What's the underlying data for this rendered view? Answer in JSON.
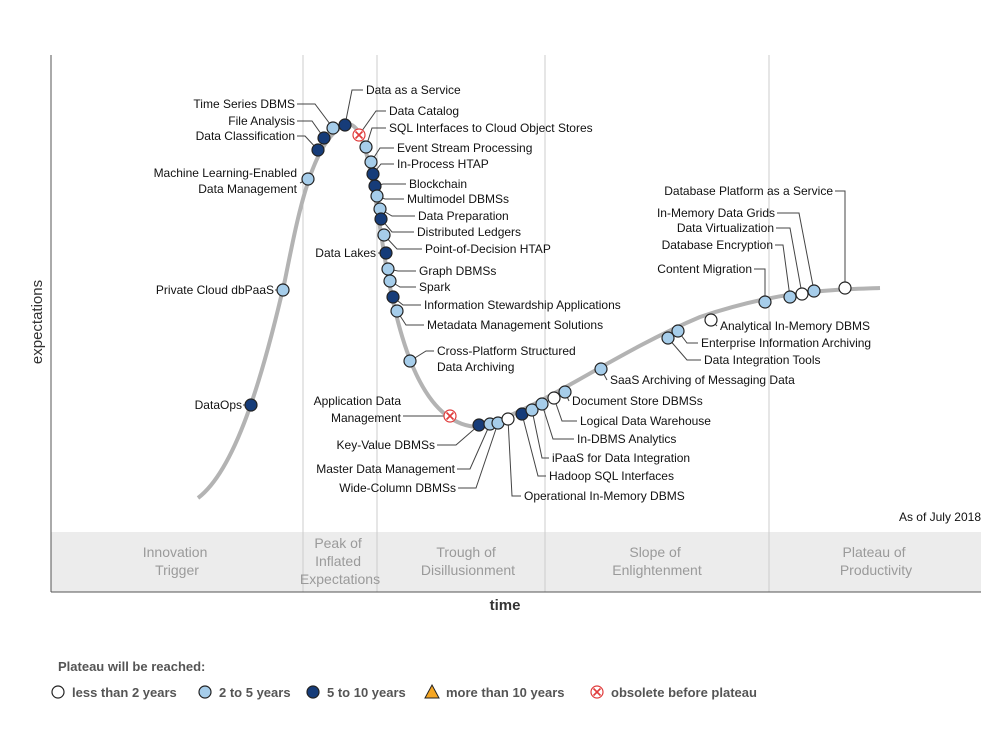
{
  "chart_data": {
    "type": "scatter",
    "xlabel": "time",
    "ylabel": "expectations",
    "as_of": "As of July 2018",
    "phases": [
      {
        "lines": [
          "Innovation",
          "Trigger"
        ]
      },
      {
        "lines": [
          "Peak of",
          "Inflated",
          "Expectations"
        ]
      },
      {
        "lines": [
          "Trough of",
          "Disillusionment"
        ]
      },
      {
        "lines": [
          "Slope of",
          "Enlightenment"
        ]
      },
      {
        "lines": [
          "Plateau of",
          "Productivity"
        ]
      }
    ],
    "legend_title": "Plateau will be reached:",
    "legend": [
      {
        "key": "lt2",
        "label": "less than 2 years"
      },
      {
        "key": "2to5",
        "label": "2 to 5 years"
      },
      {
        "key": "5to10",
        "label": "5 to 10 years"
      },
      {
        "key": "gt10",
        "label": "more than 10 years"
      },
      {
        "key": "obsolete",
        "label": "obsolete before plateau"
      }
    ],
    "colors": {
      "lt2": "#ffffff",
      "2to5": "#a6cdea",
      "5to10": "#163c79",
      "gt10": "#f5a623",
      "obsolete": "#ffffff",
      "obsolete_mark": "#e03c3c",
      "curve": "#b3b3b3",
      "phase_band": "#ececec"
    },
    "points": [
      {
        "label": "DataOps",
        "cat": "5to10"
      },
      {
        "label": "Private Cloud dbPaaS",
        "cat": "2to5"
      },
      {
        "label": "Machine Learning-Enabled Data Management",
        "cat": "2to5"
      },
      {
        "label": "Data Classification",
        "cat": "5to10"
      },
      {
        "label": "File Analysis",
        "cat": "5to10"
      },
      {
        "label": "Time Series DBMS",
        "cat": "2to5"
      },
      {
        "label": "Data as a Service",
        "cat": "5to10"
      },
      {
        "label": "Data Catalog",
        "cat": "obsolete"
      },
      {
        "label": "SQL Interfaces to Cloud Object Stores",
        "cat": "2to5"
      },
      {
        "label": "Event Stream Processing",
        "cat": "2to5"
      },
      {
        "label": "In-Process HTAP",
        "cat": "5to10"
      },
      {
        "label": "Blockchain",
        "cat": "5to10"
      },
      {
        "label": "Multimodel DBMSs",
        "cat": "2to5"
      },
      {
        "label": "Data Preparation",
        "cat": "2to5"
      },
      {
        "label": "Distributed Ledgers",
        "cat": "5to10"
      },
      {
        "label": "Point-of-Decision HTAP",
        "cat": "2to5"
      },
      {
        "label": "Data Lakes",
        "cat": "5to10"
      },
      {
        "label": "Graph DBMSs",
        "cat": "2to5"
      },
      {
        "label": "Spark",
        "cat": "2to5"
      },
      {
        "label": "Information Stewardship Applications",
        "cat": "5to10"
      },
      {
        "label": "Metadata Management Solutions",
        "cat": "2to5"
      },
      {
        "label": "Cross-Platform Structured Data Archiving",
        "cat": "2to5"
      },
      {
        "label": "Application Data Management",
        "cat": "obsolete"
      },
      {
        "label": "Key-Value DBMSs",
        "cat": "5to10"
      },
      {
        "label": "Master Data Management",
        "cat": "2to5"
      },
      {
        "label": "Wide-Column DBMSs",
        "cat": "2to5"
      },
      {
        "label": "Operational In-Memory DBMS",
        "cat": "lt2"
      },
      {
        "label": "Hadoop SQL Interfaces",
        "cat": "5to10"
      },
      {
        "label": "iPaaS for Data Integration",
        "cat": "2to5"
      },
      {
        "label": "In-DBMS Analytics",
        "cat": "2to5"
      },
      {
        "label": "Logical Data Warehouse",
        "cat": "lt2"
      },
      {
        "label": "Document Store DBMSs",
        "cat": "2to5"
      },
      {
        "label": "SaaS Archiving of Messaging Data",
        "cat": "2to5"
      },
      {
        "label": "Data Integration Tools",
        "cat": "2to5"
      },
      {
        "label": "Enterprise Information Archiving",
        "cat": "2to5"
      },
      {
        "label": "Analytical In-Memory DBMS",
        "cat": "lt2"
      },
      {
        "label": "Content Migration",
        "cat": "2to5"
      },
      {
        "label": "Database Encryption",
        "cat": "2to5"
      },
      {
        "label": "Data Virtualization",
        "cat": "lt2"
      },
      {
        "label": "In-Memory Data Grids",
        "cat": "2to5"
      },
      {
        "label": "Database Platform as a Service",
        "cat": "lt2"
      }
    ]
  }
}
